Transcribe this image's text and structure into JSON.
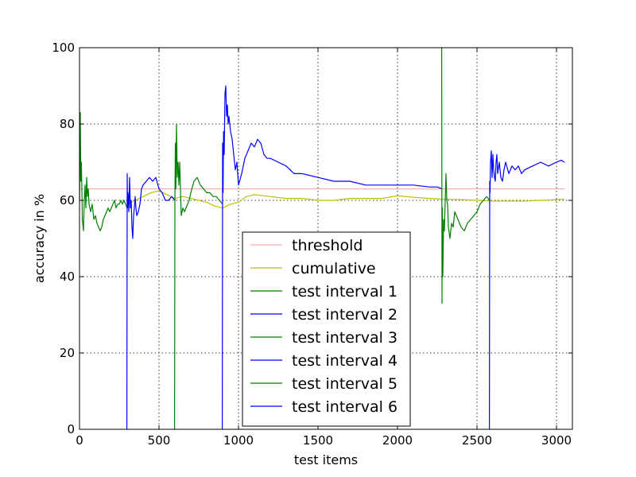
{
  "chart_data": {
    "type": "line",
    "title": "",
    "xlabel": "test items",
    "ylabel": "accuracy in %",
    "xlim": [
      0,
      3100
    ],
    "ylim": [
      0,
      100
    ],
    "xticks": [
      0,
      500,
      1000,
      1500,
      2000,
      2500,
      3000
    ],
    "yticks": [
      0,
      20,
      40,
      60,
      80,
      100
    ],
    "grid": true,
    "legend_position": "lower-center",
    "series": [
      {
        "name": "threshold",
        "color": "#ffb0b0",
        "x": [
          0,
          3050
        ],
        "y": [
          63,
          63
        ]
      },
      {
        "name": "cumulative",
        "color": "#bfbf00",
        "x": [
          300,
          350,
          400,
          450,
          500,
          550,
          600,
          650,
          700,
          750,
          800,
          850,
          900,
          950,
          1000,
          1050,
          1100,
          1200,
          1300,
          1400,
          1500,
          1600,
          1700,
          1800,
          1900,
          2000,
          2100,
          2200,
          2300,
          2400,
          2500,
          2600,
          2700,
          2800,
          2900,
          3000,
          3050
        ],
        "y": [
          59,
          60,
          61,
          62,
          62.5,
          61.5,
          60.5,
          61,
          60.5,
          60,
          59.5,
          58.5,
          58,
          59,
          59.5,
          61,
          61.5,
          61,
          60.5,
          60.5,
          60,
          60,
          60.5,
          60.5,
          60.5,
          61.2,
          60.8,
          60.5,
          60.3,
          60.2,
          60,
          59.8,
          59.8,
          59.8,
          60,
          60.2,
          60.3
        ]
      },
      {
        "name": "test interval 1",
        "color": "#007f00",
        "x": [
          0,
          5,
          8,
          12,
          18,
          25,
          30,
          35,
          40,
          45,
          50,
          55,
          60,
          70,
          80,
          90,
          100,
          110,
          120,
          130,
          140,
          150,
          160,
          170,
          180,
          190,
          200,
          210,
          220,
          230,
          240,
          250,
          260,
          270,
          280,
          290,
          300
        ],
        "y": [
          60,
          83,
          65,
          70,
          55,
          52,
          60,
          64,
          58,
          66,
          61,
          63,
          59,
          57,
          59,
          55,
          56,
          54,
          53,
          52,
          53,
          55,
          56,
          57,
          58,
          57,
          58,
          59,
          60,
          58,
          59,
          59,
          60,
          59,
          60,
          59,
          58
        ]
      },
      {
        "name": "test interval 2",
        "color": "#0000ff",
        "x": [
          298,
          300,
          302,
          305,
          310,
          315,
          320,
          325,
          330,
          335,
          340,
          345,
          350,
          355,
          360,
          370,
          380,
          390,
          400,
          420,
          440,
          460,
          480,
          500,
          520,
          540,
          560,
          580,
          600
        ],
        "y": [
          0,
          67,
          58,
          62,
          57,
          66,
          58,
          60,
          53,
          50,
          56,
          58,
          61,
          58,
          56,
          57,
          59,
          63,
          64,
          65,
          66,
          65,
          66,
          63,
          62,
          60,
          60,
          61,
          60
        ]
      },
      {
        "name": "test interval 3",
        "color": "#007f00",
        "x": [
          598,
          600,
          603,
          606,
          610,
          615,
          620,
          625,
          630,
          640,
          650,
          660,
          670,
          680,
          690,
          700,
          720,
          740,
          760,
          780,
          800,
          820,
          840,
          860,
          880,
          900
        ],
        "y": [
          0,
          60,
          75,
          63,
          80,
          66,
          70,
          64,
          70,
          56,
          58,
          57,
          58,
          59,
          60,
          62,
          65,
          66,
          64,
          63,
          62,
          62,
          61,
          61,
          60,
          59
        ]
      },
      {
        "name": "test interval 4",
        "color": "#0000ff",
        "x": [
          898,
          900,
          903,
          906,
          910,
          915,
          920,
          925,
          930,
          935,
          940,
          950,
          960,
          970,
          980,
          990,
          1000,
          1020,
          1040,
          1060,
          1080,
          1100,
          1120,
          1140,
          1160,
          1180,
          1200,
          1250,
          1300,
          1350,
          1400,
          1500,
          1600,
          1700,
          1800,
          1900,
          2000,
          2100,
          2200,
          2250,
          2280
        ],
        "y": [
          0,
          75,
          62,
          78,
          72,
          88,
          90,
          82,
          85,
          80,
          82,
          78,
          76,
          72,
          68,
          70,
          64,
          67,
          71,
          73,
          75,
          74,
          76,
          75,
          72,
          71,
          71,
          70,
          69,
          67,
          67,
          66,
          65,
          65,
          64,
          64,
          64,
          64,
          63.5,
          63.5,
          63
        ]
      },
      {
        "name": "test interval 5",
        "color": "#007f00",
        "x": [
          2278,
          2280,
          2282,
          2285,
          2290,
          2295,
          2300,
          2305,
          2310,
          2315,
          2320,
          2330,
          2340,
          2350,
          2360,
          2380,
          2400,
          2420,
          2440,
          2460,
          2480,
          2500,
          2520,
          2540,
          2560,
          2580
        ],
        "y": [
          100,
          33,
          58,
          40,
          55,
          52,
          60,
          67,
          60,
          59,
          53,
          50,
          54,
          53,
          57,
          55,
          53,
          52,
          54,
          55,
          56,
          57,
          59,
          60,
          61,
          60
        ]
      },
      {
        "name": "test interval 6",
        "color": "#0000ff",
        "x": [
          2578,
          2580,
          2582,
          2585,
          2590,
          2595,
          2600,
          2605,
          2610,
          2615,
          2620,
          2625,
          2630,
          2640,
          2650,
          2660,
          2670,
          2680,
          2700,
          2720,
          2740,
          2760,
          2780,
          2800,
          2850,
          2900,
          2950,
          3000,
          3030,
          3050
        ],
        "y": [
          0,
          65,
          62,
          70,
          73,
          66,
          72,
          68,
          66,
          65,
          70,
          72,
          67,
          70,
          66,
          65,
          68,
          70,
          67,
          69,
          68,
          69,
          67,
          68,
          69,
          70,
          69,
          70,
          70.5,
          70
        ]
      }
    ]
  }
}
